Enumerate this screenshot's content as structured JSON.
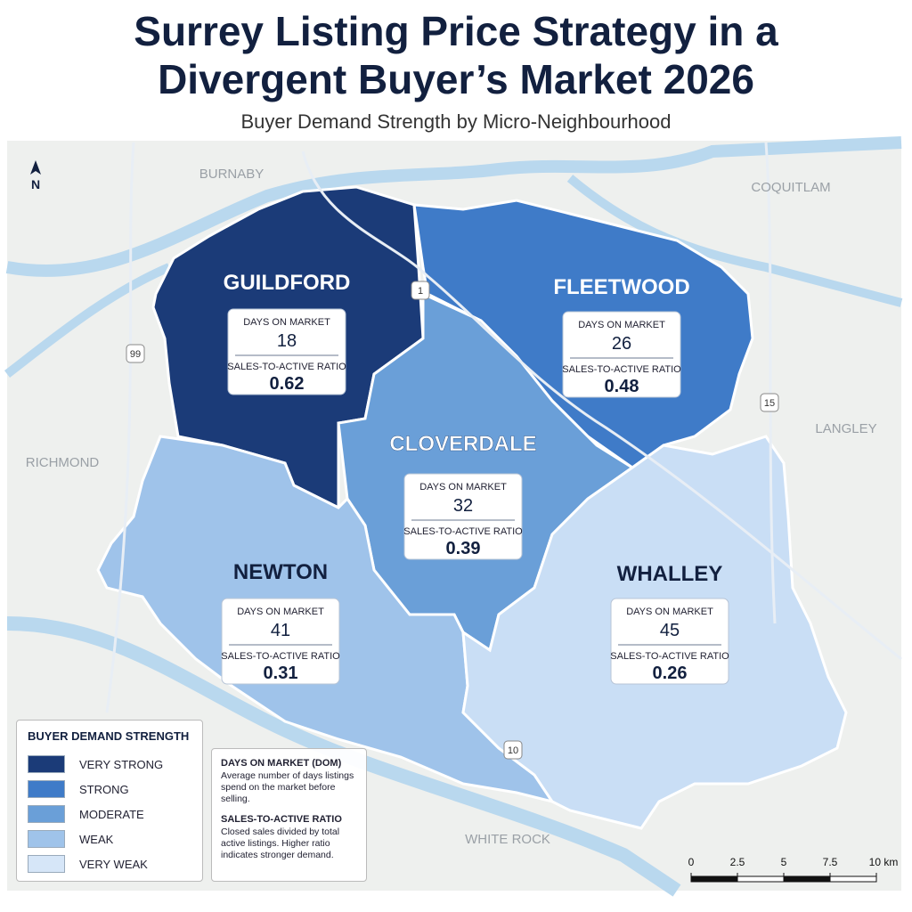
{
  "header": {
    "title": "Surrey Listing Price Strategy in a Divergent Buyer’s Market 2026",
    "subtitle": "Buyer Demand Strength by Micro-Neighbourhood"
  },
  "map": {
    "north": "N",
    "places": [
      "BURNABY",
      "COQUITLAM",
      "RICHMOND",
      "LANGLEY",
      "WHITE ROCK"
    ],
    "highways": [
      "1",
      "99",
      "15",
      "10"
    ],
    "card_labels": {
      "days": "DAYS ON MARKET",
      "ratio": "SALES-TO-ACTIVE RATIO"
    },
    "neighbourhoods": [
      {
        "name": "GUILDFORD",
        "color": "#1b3b78",
        "days": 18,
        "ratio": 0.62
      },
      {
        "name": "FLEETWOOD",
        "color": "#3f7bc8",
        "days": 26,
        "ratio": 0.48
      },
      {
        "name": "CLOVERDALE",
        "color": "#6a9fd8",
        "days": 32,
        "ratio": 0.39
      },
      {
        "name": "NEWTON",
        "color": "#9fc3ea",
        "days": 41,
        "ratio": 0.31
      },
      {
        "name": "WHALLEY",
        "color": "#c9def5",
        "days": 45,
        "ratio": 0.26
      }
    ]
  },
  "legend": {
    "title": "BUYER DEMAND STRENGTH",
    "items": [
      {
        "label": "VERY STRONG",
        "color": "#1b3b78"
      },
      {
        "label": "STRONG",
        "color": "#3f7bc8"
      },
      {
        "label": "MODERATE",
        "color": "#6a9fd8"
      },
      {
        "label": "WEAK",
        "color": "#9fc3ea"
      },
      {
        "label": "VERY WEAK",
        "color": "#d6e6f8"
      }
    ]
  },
  "notes": [
    {
      "title": "DAYS ON MARKET (DOM)",
      "text": "Average number of days listings spend on the market before selling."
    },
    {
      "title": "SALES-TO-ACTIVE RATIO",
      "text": "Closed sales divided by total active listings. Higher ratio indicates stronger demand."
    }
  ],
  "scale": {
    "ticks": [
      0,
      2.5,
      5,
      7.5,
      {
        "value": 10,
        "label": "10 km"
      }
    ]
  }
}
